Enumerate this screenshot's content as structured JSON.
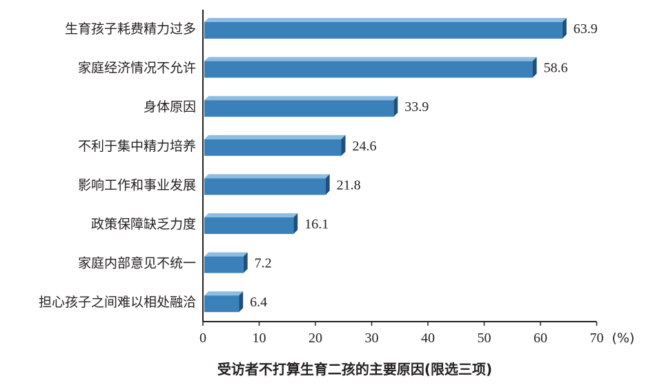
{
  "chart_data": {
    "type": "bar",
    "orientation": "horizontal",
    "title": "受访者不打算生育二孩的主要原因(限选三项)",
    "x_unit": "(%)",
    "xlim": [
      0,
      70
    ],
    "x_ticks": [
      "0",
      "10",
      "20",
      "30",
      "40",
      "50",
      "60",
      "70"
    ],
    "categories": [
      "生育孩子耗费精力过多",
      "家庭经济情况不允许",
      "身体原因",
      "不利于集中精力培养",
      "影响工作和事业发展",
      "政策保障缺乏力度",
      "家庭内部意见不统一",
      "担心孩子之间难以相处融洽"
    ],
    "values": [
      63.9,
      58.6,
      33.9,
      24.6,
      21.8,
      16.1,
      7.2,
      6.4
    ],
    "value_labels": [
      "63.9",
      "58.6",
      "33.9",
      "24.6",
      "21.8",
      "16.1",
      "7.2",
      "6.4"
    ],
    "grid": false,
    "colors": {
      "bar_front": "#3a80b9",
      "bar_top": "#8dbde0",
      "bar_side": "#1f4f7a",
      "axis": "#231f20",
      "text": "#231f20"
    }
  }
}
